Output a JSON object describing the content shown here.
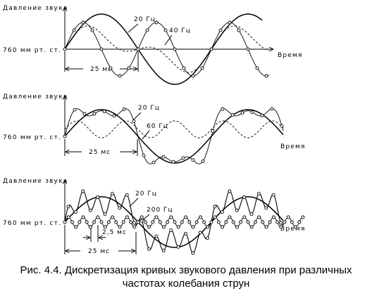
{
  "figure": {
    "panels": [
      {
        "ylabel": "Давление звука",
        "baseline_label": "760 мм рт. ст.",
        "xlabel": "Время",
        "freq_labels": [
          "20 Гц",
          "40 Гц"
        ],
        "interval_label": "25 мс"
      },
      {
        "ylabel": "Давление звука",
        "baseline_label": "760 мм рт. ст.",
        "xlabel": "Время",
        "freq_labels": [
          "20 Гц",
          "60 Гц"
        ],
        "interval_label": "25 мс"
      },
      {
        "ylabel": "Давление звука",
        "baseline_label": "760 мм рт. ст.",
        "xlabel": "Время",
        "freq_labels": [
          "20 Гц",
          "200 Гц"
        ],
        "interval_labels": [
          "2,5 мс",
          "25 мс"
        ]
      }
    ],
    "caption_line1": "Рис. 4.4. Дискретизация кривых звукового давления при различных",
    "caption_line2": "частотах колебания струн"
  }
}
